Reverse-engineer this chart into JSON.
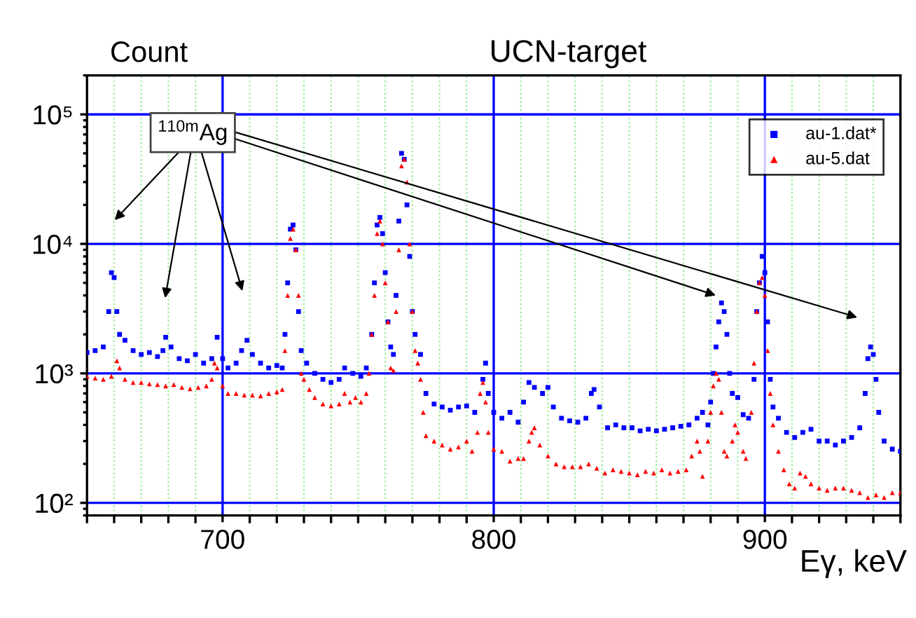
{
  "chart_data": {
    "type": "scatter",
    "title": "UCN-target",
    "ylabel": "Count",
    "xlabel": "Eγ, keV",
    "log": "y",
    "grid": true,
    "legend": "top right",
    "xlim": [
      650,
      950
    ],
    "xticks": [
      {
        "value": 650,
        "label": null
      },
      {
        "value": 660,
        "label": null
      },
      {
        "value": 670,
        "label": null
      },
      {
        "value": 680,
        "label": null
      },
      {
        "value": 690,
        "label": null
      },
      700,
      {
        "value": 710,
        "label": null
      },
      {
        "value": 720,
        "label": null
      },
      {
        "value": 730,
        "label": null
      },
      {
        "value": 740,
        "label": null
      },
      {
        "value": 750,
        "label": null
      },
      {
        "value": 760,
        "label": null
      },
      {
        "value": 770,
        "label": null
      },
      {
        "value": 780,
        "label": null
      },
      {
        "value": 790,
        "label": null
      },
      800,
      {
        "value": 810,
        "label": null
      },
      {
        "value": 820,
        "label": null
      },
      {
        "value": 830,
        "label": null
      },
      {
        "value": 840,
        "label": null
      },
      {
        "value": 850,
        "label": null
      },
      {
        "value": 860,
        "label": null
      },
      {
        "value": 870,
        "label": null
      },
      {
        "value": 880,
        "label": null
      },
      {
        "value": 890,
        "label": null
      },
      900,
      {
        "value": 910,
        "label": null
      },
      {
        "value": 920,
        "label": null
      },
      {
        "value": 930,
        "label": null
      },
      {
        "value": 940,
        "label": null
      },
      {
        "value": 950,
        "label": null
      }
    ],
    "ylim": [
      80,
      200000
    ],
    "yticks": [
      {
        "value": 100,
        "label": "10²"
      },
      {
        "value": 1000,
        "label": "10³"
      },
      {
        "value": 10000,
        "label": "10⁴"
      },
      {
        "value": 100000,
        "label": "10⁵"
      }
    ],
    "annotations": [
      "$^{110m}$Ag"
    ],
    "series": [
      {
        "name": "au-1.dat*",
        "color": "#0000ff",
        "marker": "square",
        "x": [
          650,
          653,
          656,
          658,
          659,
          660,
          661,
          662,
          664,
          667,
          670,
          673,
          676,
          678,
          679,
          681,
          684,
          687,
          690,
          693,
          696,
          698,
          700,
          702,
          705,
          707,
          709,
          711,
          714,
          717,
          720,
          722,
          723,
          724,
          725,
          726,
          727,
          728,
          729,
          731,
          734,
          737,
          740,
          743,
          745,
          748,
          751,
          753,
          755,
          756,
          757,
          758,
          759,
          760,
          761,
          762,
          763,
          764,
          765,
          766,
          767,
          768,
          769,
          770,
          771,
          773,
          775,
          778,
          781,
          784,
          787,
          790,
          793,
          796,
          797,
          798,
          800,
          803,
          806,
          809,
          811,
          813,
          815,
          818,
          820,
          822,
          825,
          828,
          831,
          834,
          836,
          837,
          839,
          842,
          845,
          848,
          851,
          854,
          857,
          860,
          863,
          866,
          869,
          872,
          875,
          877,
          879,
          880,
          881,
          882,
          883,
          884,
          885,
          886,
          887,
          888,
          890,
          892,
          894,
          896,
          897,
          898,
          899,
          900,
          901,
          902,
          903,
          905,
          908,
          911,
          914,
          917,
          920,
          923,
          926,
          929,
          932,
          935,
          937,
          938,
          939,
          940,
          941,
          942,
          944,
          947,
          950
        ],
        "values": [
          1450,
          1500,
          1600,
          3000,
          6000,
          5500,
          3000,
          2000,
          1800,
          1500,
          1400,
          1450,
          1350,
          1500,
          1900,
          1600,
          1300,
          1250,
          1400,
          1200,
          1300,
          1900,
          1300,
          1100,
          1200,
          1500,
          1800,
          1400,
          1200,
          1100,
          1150,
          1100,
          2000,
          5000,
          13000,
          14000,
          9000,
          3000,
          1500,
          1200,
          1000,
          900,
          850,
          900,
          1100,
          1000,
          950,
          1100,
          2000,
          5000,
          14000,
          16000,
          12000,
          6000,
          2500,
          1600,
          1400,
          4000,
          15000,
          50000,
          45000,
          20000,
          8000,
          3000,
          2000,
          1400,
          700,
          580,
          550,
          520,
          550,
          560,
          500,
          900,
          1200,
          700,
          500,
          450,
          500,
          420,
          600,
          850,
          780,
          700,
          780,
          550,
          450,
          430,
          420,
          450,
          700,
          750,
          550,
          380,
          400,
          380,
          380,
          360,
          370,
          360,
          370,
          380,
          390,
          400,
          450,
          500,
          400,
          600,
          1000,
          1600,
          2500,
          3500,
          3000,
          2000,
          1000,
          700,
          650,
          480,
          450,
          900,
          3000,
          5000,
          8000,
          6000,
          2500,
          900,
          550,
          450,
          350,
          320,
          350,
          370,
          300,
          300,
          280,
          300,
          320,
          380,
          700,
          1300,
          1600,
          1400,
          900,
          500,
          300,
          260,
          250
        ]
      },
      {
        "name": "au-5.dat",
        "color": "#ff0000",
        "marker": "triangle",
        "x": [
          650,
          653,
          656,
          659,
          661,
          662,
          664,
          667,
          670,
          673,
          676,
          679,
          682,
          685,
          688,
          691,
          694,
          696,
          697,
          698,
          700,
          702,
          705,
          708,
          711,
          714,
          717,
          720,
          722,
          723,
          724,
          725,
          726,
          727,
          728,
          729,
          730,
          732,
          734,
          737,
          740,
          743,
          745,
          747,
          749,
          751,
          753,
          754,
          755,
          756,
          757,
          758,
          759,
          760,
          761,
          762,
          763,
          764,
          765,
          766,
          767,
          768,
          769,
          770,
          771,
          772,
          773,
          774,
          775,
          778,
          781,
          784,
          787,
          790,
          792,
          794,
          795,
          796,
          797,
          798,
          800,
          803,
          806,
          809,
          811,
          813,
          814,
          815,
          817,
          820,
          823,
          826,
          829,
          832,
          835,
          838,
          841,
          844,
          847,
          850,
          853,
          856,
          859,
          862,
          865,
          868,
          871,
          873,
          875,
          876,
          877,
          879,
          880,
          881,
          882,
          883,
          884,
          885,
          886,
          888,
          889,
          890,
          892,
          893,
          895,
          896,
          897,
          898,
          899,
          900,
          901,
          902,
          903,
          905,
          907,
          909,
          911,
          913,
          915,
          917,
          920,
          923,
          926,
          929,
          932,
          935,
          938,
          941,
          944,
          947,
          950
        ],
        "values": [
          950,
          920,
          900,
          950,
          1250,
          1100,
          900,
          850,
          850,
          830,
          820,
          800,
          820,
          780,
          760,
          780,
          800,
          900,
          1200,
          1100,
          800,
          700,
          700,
          680,
          680,
          670,
          700,
          720,
          750,
          1500,
          4000,
          11000,
          13000,
          9000,
          4000,
          1000,
          900,
          750,
          650,
          580,
          560,
          580,
          700,
          600,
          650,
          600,
          700,
          1000,
          2000,
          4000,
          12000,
          15000,
          10000,
          5000,
          2500,
          1100,
          1050,
          3000,
          9000,
          40000,
          45000,
          30000,
          10000,
          3000,
          1500,
          1200,
          900,
          500,
          330,
          300,
          280,
          260,
          270,
          300,
          250,
          350,
          700,
          850,
          600,
          350,
          260,
          250,
          210,
          220,
          220,
          300,
          350,
          380,
          280,
          230,
          200,
          190,
          190,
          190,
          200,
          185,
          170,
          180,
          175,
          170,
          165,
          175,
          170,
          180,
          170,
          175,
          180,
          230,
          300,
          250,
          160,
          300,
          500,
          800,
          1000,
          900,
          500,
          250,
          230,
          300,
          400,
          350,
          250,
          220,
          500,
          1200,
          3000,
          5000,
          5500,
          4000,
          1500,
          700,
          400,
          250,
          180,
          140,
          130,
          170,
          160,
          140,
          130,
          125,
          130,
          130,
          125,
          120,
          110,
          115,
          110,
          120,
          120
        ]
      }
    ]
  }
}
